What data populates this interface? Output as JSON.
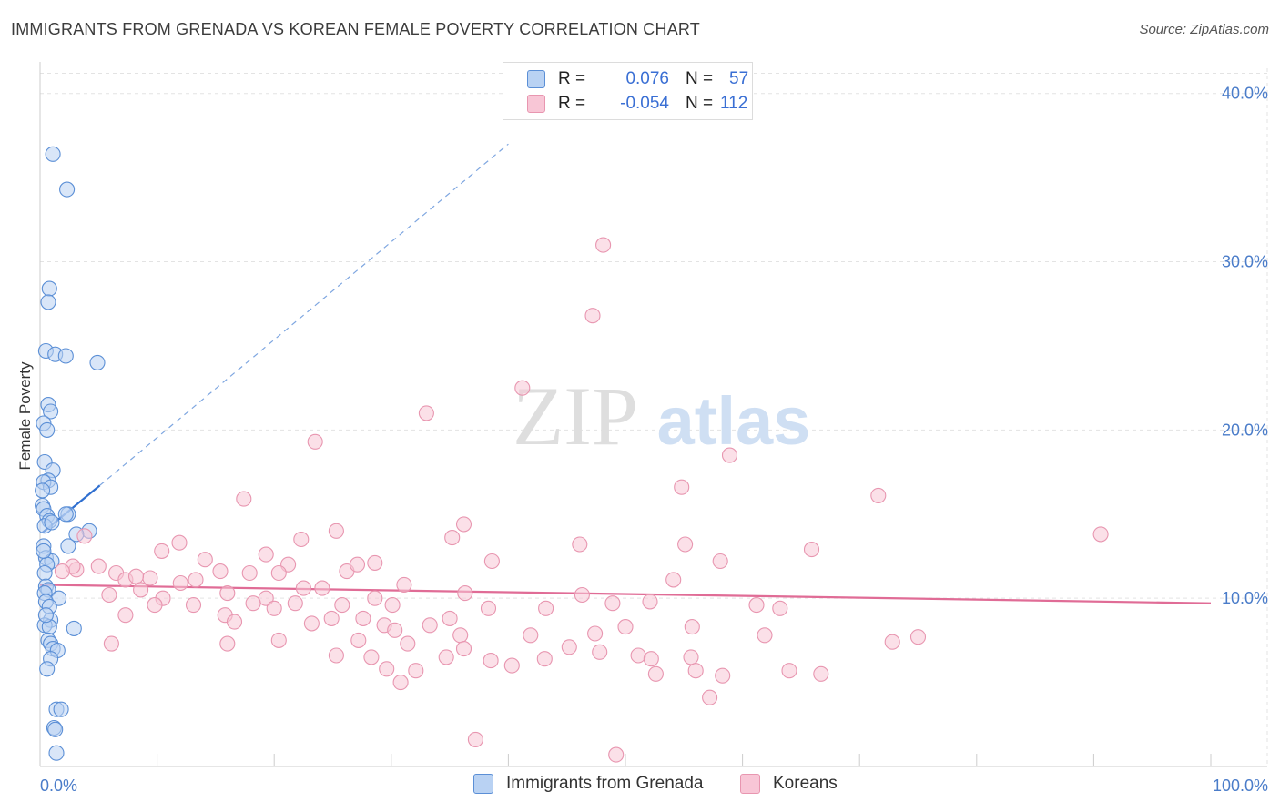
{
  "title": "IMMIGRANTS FROM GRENADA VS KOREAN FEMALE POVERTY CORRELATION CHART",
  "source": "Source: ZipAtlas.com",
  "watermark": {
    "zip": "ZIP",
    "atlas": "atlas"
  },
  "colors": {
    "blue": "#5b8fd6",
    "blue_fill": "#b9d2f3",
    "blue_line": "#2f6fd0",
    "pink": "#e896b0",
    "pink_fill": "#f8c6d6",
    "pink_line": "#e06c96",
    "grid": "#e3e3e3",
    "tick_text": "#4a7cc9"
  },
  "legend": {
    "rows": [
      {
        "r_label": "R =",
        "r_value": "0.076",
        "n_label": "N =",
        "n_value": "57",
        "color": "blue"
      },
      {
        "r_label": "R =",
        "r_value": "-0.054",
        "n_label": "N =",
        "n_value": "112",
        "color": "pink"
      }
    ]
  },
  "bottom_legend": [
    {
      "label": "Immigrants from Grenada",
      "color": "blue"
    },
    {
      "label": "Koreans",
      "color": "pink"
    }
  ],
  "chart_data": {
    "type": "scatter",
    "title": "IMMIGRANTS FROM GRENADA VS KOREAN FEMALE POVERTY CORRELATION CHART",
    "xlabel": "",
    "ylabel": "Female Poverty",
    "xlim": [
      0,
      100
    ],
    "ylim": [
      0,
      41.5
    ],
    "y_ticks": [
      10,
      20,
      30,
      40
    ],
    "y_tick_labels": [
      "10.0%",
      "20.0%",
      "30.0%",
      "40.0%"
    ],
    "x_tick_labels": [
      "0.0%",
      "100.0%"
    ],
    "x_minor_ticks": [
      10,
      20,
      30,
      40,
      50,
      60,
      70,
      80,
      90,
      100
    ],
    "grid": true,
    "series": [
      {
        "name": "Immigrants from Grenada",
        "color": "blue",
        "r": 0.076,
        "n": 57,
        "trend": {
          "x": [
            0.2,
            5.1
          ],
          "y": [
            13.9,
            16.7
          ],
          "dashed_to": [
            40,
            37.0
          ]
        },
        "points": [
          [
            1.1,
            36.4
          ],
          [
            2.3,
            34.3
          ],
          [
            0.8,
            28.4
          ],
          [
            0.7,
            27.6
          ],
          [
            0.5,
            24.7
          ],
          [
            1.3,
            24.5
          ],
          [
            2.2,
            24.4
          ],
          [
            4.9,
            24.0
          ],
          [
            0.7,
            21.5
          ],
          [
            0.9,
            21.1
          ],
          [
            0.3,
            20.4
          ],
          [
            0.6,
            20.0
          ],
          [
            0.4,
            18.1
          ],
          [
            1.1,
            17.6
          ],
          [
            0.7,
            17.0
          ],
          [
            0.3,
            16.9
          ],
          [
            0.9,
            16.6
          ],
          [
            0.2,
            16.4
          ],
          [
            0.2,
            15.5
          ],
          [
            0.3,
            15.3
          ],
          [
            0.6,
            14.9
          ],
          [
            2.4,
            15.0
          ],
          [
            2.2,
            15.0
          ],
          [
            0.8,
            14.6
          ],
          [
            0.4,
            14.3
          ],
          [
            4.2,
            14.0
          ],
          [
            3.1,
            13.8
          ],
          [
            0.3,
            13.1
          ],
          [
            2.4,
            13.1
          ],
          [
            0.5,
            12.4
          ],
          [
            1.0,
            12.2
          ],
          [
            0.6,
            12.0
          ],
          [
            0.4,
            11.5
          ],
          [
            0.5,
            10.7
          ],
          [
            0.7,
            10.5
          ],
          [
            0.4,
            10.3
          ],
          [
            1.6,
            10.0
          ],
          [
            0.5,
            9.8
          ],
          [
            0.8,
            9.5
          ],
          [
            0.9,
            8.7
          ],
          [
            0.4,
            8.4
          ],
          [
            0.8,
            8.3
          ],
          [
            2.9,
            8.2
          ],
          [
            0.7,
            7.5
          ],
          [
            0.9,
            7.3
          ],
          [
            1.1,
            7.0
          ],
          [
            1.5,
            6.9
          ],
          [
            0.9,
            6.4
          ],
          [
            0.6,
            5.8
          ],
          [
            1.4,
            3.4
          ],
          [
            1.8,
            3.4
          ],
          [
            1.2,
            2.3
          ],
          [
            1.3,
            2.2
          ],
          [
            1.4,
            0.8
          ],
          [
            0.3,
            12.8
          ],
          [
            0.5,
            9.0
          ],
          [
            1.0,
            14.5
          ]
        ]
      },
      {
        "name": "Koreans",
        "color": "pink",
        "r": -0.054,
        "n": 112,
        "trend": {
          "x": [
            0,
            100
          ],
          "y": [
            10.8,
            9.7
          ]
        },
        "points": [
          [
            48.1,
            31.0
          ],
          [
            47.2,
            26.8
          ],
          [
            41.2,
            22.5
          ],
          [
            33.0,
            21.0
          ],
          [
            23.5,
            19.3
          ],
          [
            58.9,
            18.5
          ],
          [
            54.8,
            16.6
          ],
          [
            71.6,
            16.1
          ],
          [
            17.4,
            15.9
          ],
          [
            36.2,
            14.4
          ],
          [
            90.6,
            13.8
          ],
          [
            25.3,
            14.0
          ],
          [
            3.8,
            13.7
          ],
          [
            22.3,
            13.5
          ],
          [
            35.2,
            13.6
          ],
          [
            11.9,
            13.3
          ],
          [
            46.1,
            13.2
          ],
          [
            55.1,
            13.2
          ],
          [
            65.9,
            12.9
          ],
          [
            10.4,
            12.8
          ],
          [
            19.3,
            12.6
          ],
          [
            38.6,
            12.2
          ],
          [
            14.1,
            12.3
          ],
          [
            58.1,
            12.2
          ],
          [
            21.2,
            12.0
          ],
          [
            3.1,
            11.7
          ],
          [
            6.5,
            11.5
          ],
          [
            9.4,
            11.2
          ],
          [
            13.3,
            11.1
          ],
          [
            7.3,
            11.1
          ],
          [
            20.4,
            11.5
          ],
          [
            17.9,
            11.5
          ],
          [
            15.4,
            11.6
          ],
          [
            26.2,
            11.6
          ],
          [
            27.1,
            12.0
          ],
          [
            2.8,
            11.9
          ],
          [
            5.0,
            11.9
          ],
          [
            8.2,
            11.3
          ],
          [
            12.0,
            10.9
          ],
          [
            31.1,
            10.8
          ],
          [
            54.1,
            11.1
          ],
          [
            1.9,
            11.6
          ],
          [
            22.5,
            10.6
          ],
          [
            16.0,
            10.3
          ],
          [
            10.5,
            10.0
          ],
          [
            5.9,
            10.2
          ],
          [
            8.6,
            10.5
          ],
          [
            24.1,
            10.6
          ],
          [
            36.3,
            10.3
          ],
          [
            19.3,
            10.0
          ],
          [
            28.6,
            10.0
          ],
          [
            20.0,
            9.4
          ],
          [
            18.2,
            9.7
          ],
          [
            13.1,
            9.6
          ],
          [
            9.8,
            9.6
          ],
          [
            21.8,
            9.7
          ],
          [
            25.8,
            9.6
          ],
          [
            30.1,
            9.6
          ],
          [
            38.3,
            9.4
          ],
          [
            43.2,
            9.4
          ],
          [
            48.9,
            9.7
          ],
          [
            61.2,
            9.6
          ],
          [
            63.2,
            9.4
          ],
          [
            7.3,
            9.0
          ],
          [
            15.8,
            9.0
          ],
          [
            24.9,
            8.8
          ],
          [
            27.6,
            8.8
          ],
          [
            35.0,
            8.8
          ],
          [
            16.6,
            8.6
          ],
          [
            23.2,
            8.5
          ],
          [
            29.4,
            8.4
          ],
          [
            33.3,
            8.4
          ],
          [
            30.3,
            8.1
          ],
          [
            35.9,
            7.8
          ],
          [
            41.9,
            7.8
          ],
          [
            47.4,
            7.9
          ],
          [
            50.0,
            8.3
          ],
          [
            55.7,
            8.3
          ],
          [
            61.9,
            7.8
          ],
          [
            6.1,
            7.3
          ],
          [
            16.0,
            7.3
          ],
          [
            20.4,
            7.5
          ],
          [
            27.2,
            7.5
          ],
          [
            31.4,
            7.3
          ],
          [
            36.2,
            7.0
          ],
          [
            45.2,
            7.1
          ],
          [
            47.8,
            6.8
          ],
          [
            51.1,
            6.6
          ],
          [
            52.2,
            6.4
          ],
          [
            55.6,
            6.5
          ],
          [
            25.3,
            6.6
          ],
          [
            28.3,
            6.5
          ],
          [
            34.7,
            6.5
          ],
          [
            38.5,
            6.3
          ],
          [
            72.8,
            7.4
          ],
          [
            75.0,
            7.7
          ],
          [
            43.1,
            6.4
          ],
          [
            40.3,
            6.0
          ],
          [
            29.6,
            5.8
          ],
          [
            32.1,
            5.7
          ],
          [
            52.6,
            5.5
          ],
          [
            56.0,
            5.7
          ],
          [
            58.3,
            5.4
          ],
          [
            64.0,
            5.7
          ],
          [
            66.7,
            5.5
          ],
          [
            30.8,
            5.0
          ],
          [
            57.2,
            4.1
          ],
          [
            37.2,
            1.6
          ],
          [
            49.2,
            0.7
          ],
          [
            28.6,
            12.1
          ],
          [
            46.3,
            10.2
          ],
          [
            52.1,
            9.8
          ]
        ]
      }
    ]
  }
}
